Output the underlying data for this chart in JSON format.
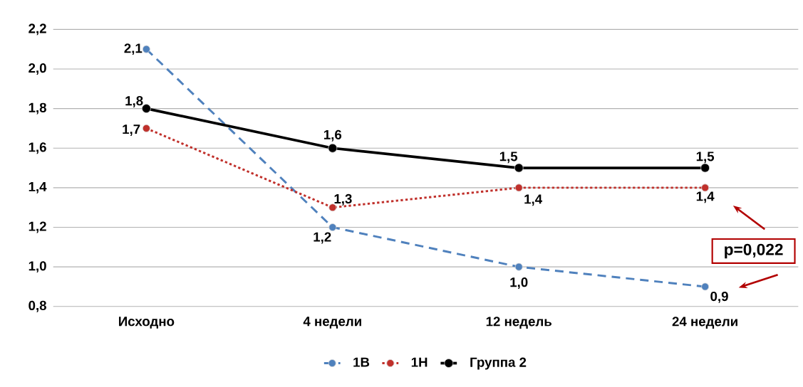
{
  "chart_data": {
    "type": "line",
    "categories": [
      "Исходно",
      "4 недели",
      "12 недель",
      "24 недели"
    ],
    "series": [
      {
        "name": "1В",
        "color": "#4f81bd",
        "values": [
          2.1,
          1.2,
          1.0,
          0.9
        ],
        "value_labels": [
          "2,1",
          "1,2",
          "1,0",
          "0,9"
        ],
        "line_style": "dashed"
      },
      {
        "name": "1Н",
        "color": "#c0302b",
        "values": [
          1.7,
          1.3,
          1.4,
          1.4
        ],
        "value_labels": [
          "1,7",
          "1,3",
          "1,4",
          "1,4"
        ],
        "line_style": "dotted"
      },
      {
        "name": "Группа 2",
        "color": "#000000",
        "values": [
          1.8,
          1.6,
          1.5,
          1.5
        ],
        "value_labels": [
          "1,8",
          "1,6",
          "1,5",
          "1,5"
        ],
        "line_style": "solid"
      }
    ],
    "ylim": [
      0.8,
      2.2
    ],
    "yticks": [
      {
        "value": 0.8,
        "label": "0,8"
      },
      {
        "value": 1.0,
        "label": "1,0"
      },
      {
        "value": 1.2,
        "label": "1,2"
      },
      {
        "value": 1.4,
        "label": "1,4"
      },
      {
        "value": 1.6,
        "label": "1,6"
      },
      {
        "value": 1.8,
        "label": "1,8"
      },
      {
        "value": 2.0,
        "label": "2,0"
      },
      {
        "value": 2.2,
        "label": "2,2"
      }
    ],
    "grid": "y",
    "legend": "bottom",
    "marker": "circle",
    "annotations": [
      "p=0,022"
    ]
  }
}
